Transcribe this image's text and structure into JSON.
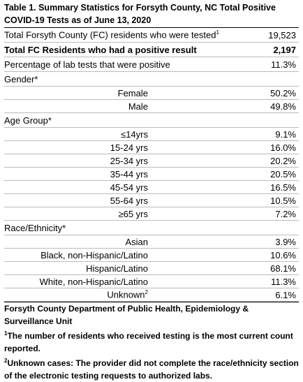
{
  "title": "Table 1. Summary Statistics for Forsyth County, NC Total Positive COVID-19 Tests as of June 13, 2020",
  "summary": [
    {
      "label": "Total Forsyth County (FC) residents who were tested",
      "note": "1",
      "value": "19,523"
    },
    {
      "label": "Total FC Residents who had a positive result",
      "value": "2,197"
    },
    {
      "label": "Percentage of lab tests that were positive",
      "value": "11.3%"
    }
  ],
  "sections": [
    {
      "title": "Gender*",
      "rows": [
        {
          "label": "Female",
          "value": "50.2%"
        },
        {
          "label": "Male",
          "value": "49.8%"
        }
      ]
    },
    {
      "title": "Age Group*",
      "rows": [
        {
          "label": "≤14yrs",
          "value": "9.1%"
        },
        {
          "label": "15-24 yrs",
          "value": "16.0%"
        },
        {
          "label": "25-34 yrs",
          "value": "20.2%"
        },
        {
          "label": "35-44 yrs",
          "value": "20.5%"
        },
        {
          "label": "45-54 yrs",
          "value": "16.5%"
        },
        {
          "label": "55-64 yrs",
          "value": "10.5%"
        },
        {
          "label": "≥65 yrs",
          "value": "7.2%"
        }
      ]
    },
    {
      "title": "Race/Ethnicity*",
      "rows": [
        {
          "label": "Asian",
          "value": "3.9%"
        },
        {
          "label": "Black, non-Hispanic/Latino",
          "value": "10.6%"
        },
        {
          "label": "Hispanic/Latino",
          "value": "68.1%"
        },
        {
          "label": "White, non-Hispanic/Latino",
          "value": "11.3%"
        },
        {
          "label": "Unknown",
          "note": "2",
          "value": "6.1%"
        }
      ]
    }
  ],
  "footer": {
    "source": "Forsyth County Department of Public Health, Epidemiology & Surveillance Unit",
    "notes": [
      {
        "marker": "1",
        "text": "The number of residents who received testing is the most current count reported."
      },
      {
        "marker": "2",
        "text": "Unknown cases: The provider did not complete the race/ethnicity section of the electronic testing requests to authorized labs."
      }
    ]
  }
}
